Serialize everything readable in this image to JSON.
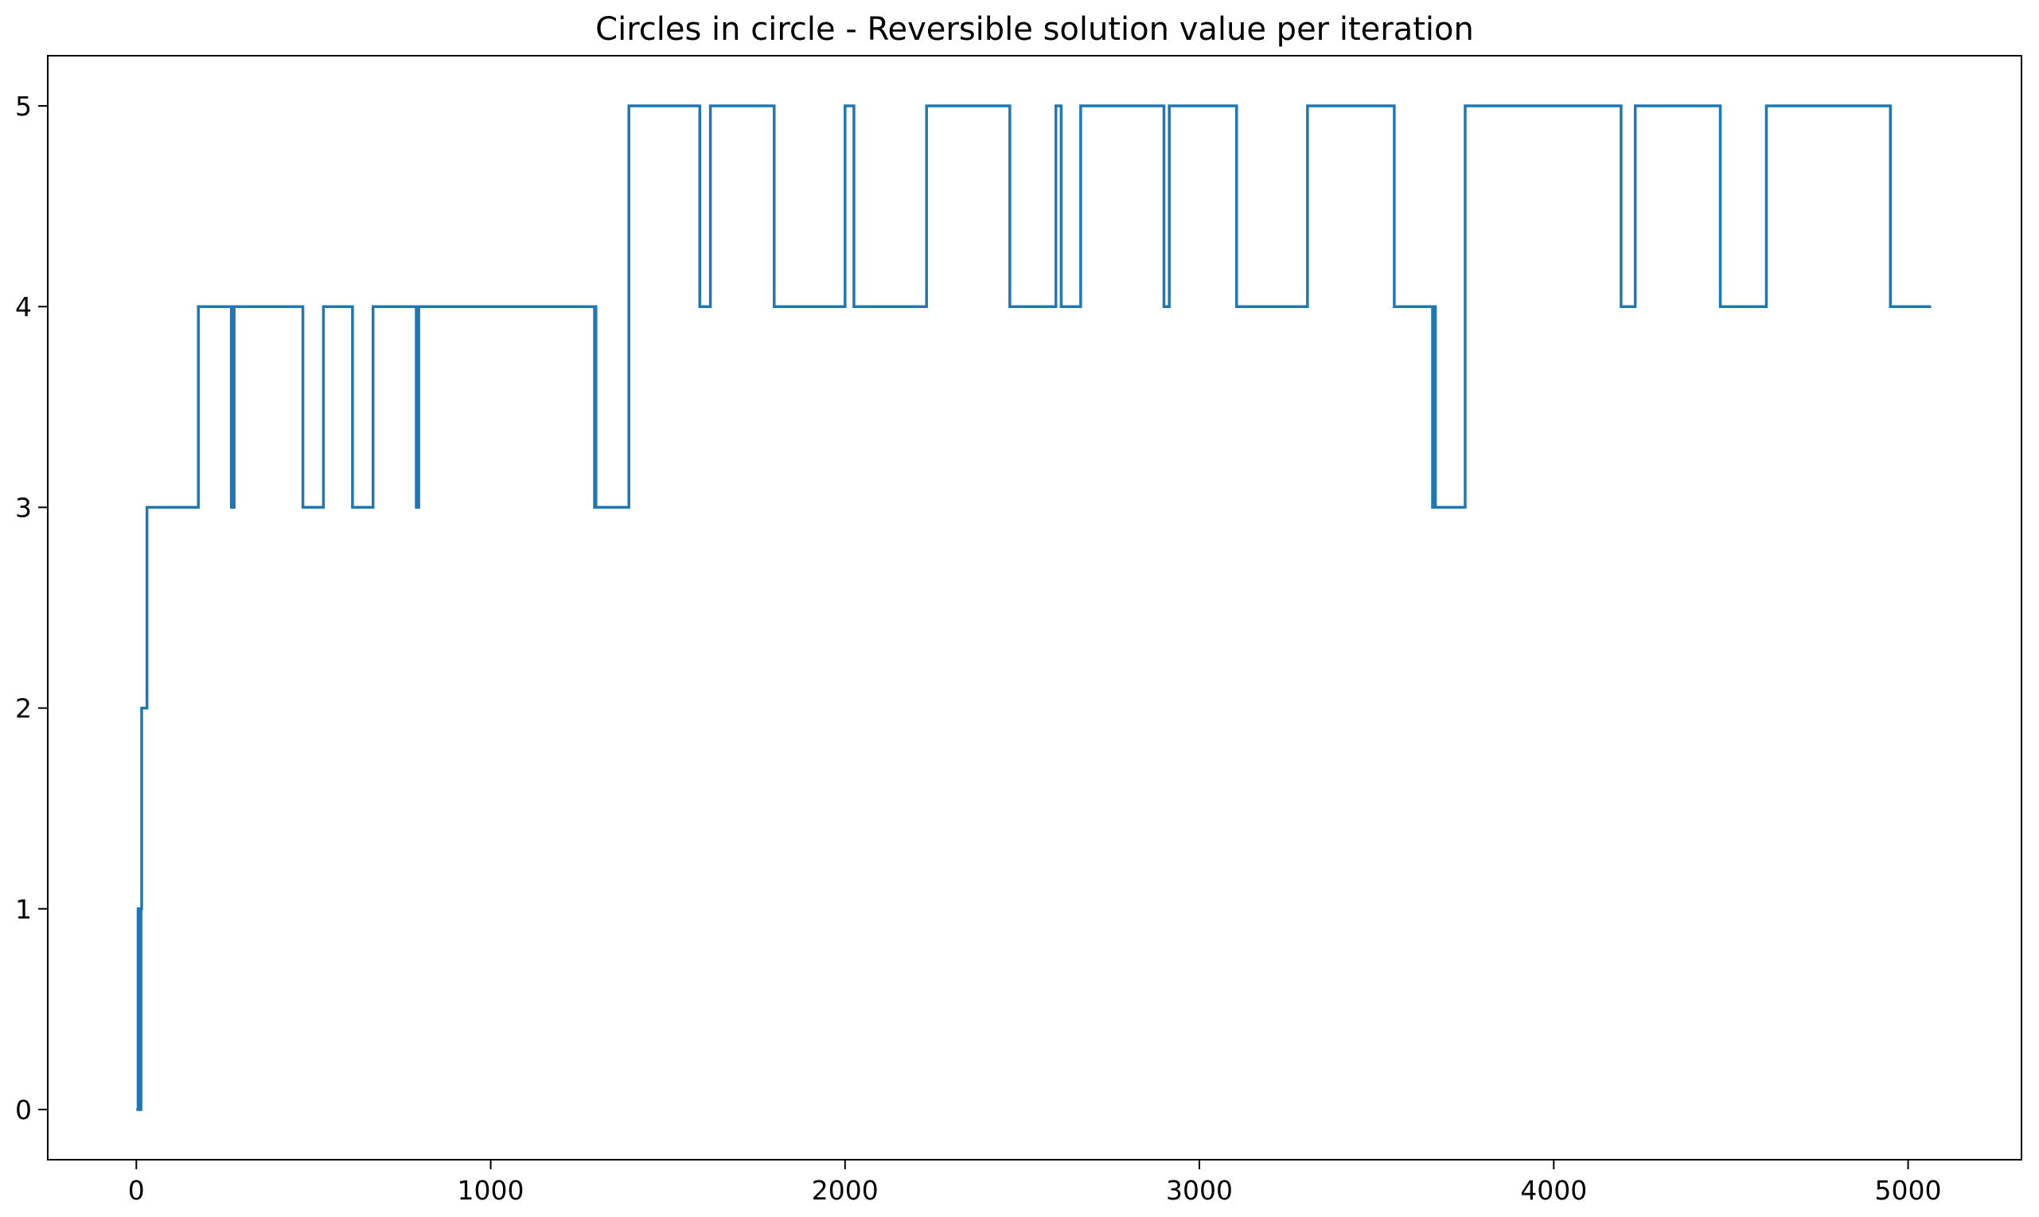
{
  "chart_data": {
    "type": "line",
    "title": "Circles in circle - Reversible solution value per iteration",
    "xlabel": "",
    "ylabel": "",
    "xlim": [
      -250,
      5320
    ],
    "ylim": [
      -0.25,
      5.25
    ],
    "xticks": [
      0,
      1000,
      2000,
      3000,
      4000,
      5000
    ],
    "xtick_labels": [
      "0",
      "1000",
      "2000",
      "3000",
      "4000",
      "5000"
    ],
    "yticks": [
      0,
      1,
      2,
      3,
      4,
      5
    ],
    "ytick_labels": [
      "0",
      "1",
      "2",
      "3",
      "4",
      "5"
    ],
    "grid": false,
    "legend": "none",
    "colors": {
      "series": "#1f77b4"
    },
    "series": [
      {
        "step": "post",
        "x": [
          0,
          5,
          7,
          9,
          11,
          13,
          15,
          30,
          175,
          268,
          270,
          274,
          276,
          470,
          528,
          610,
          668,
          790,
          797,
          805,
          1293,
          1295,
          1297,
          1390,
          1590,
          1620,
          1800,
          2000,
          2010,
          2025,
          2230,
          2465,
          2595,
          2610,
          2665,
          2900,
          2915,
          3105,
          3305,
          3550,
          3658,
          3662,
          3666,
          3750,
          4190,
          4230,
          4470,
          4600,
          4950,
          5065
        ],
        "y": [
          0,
          1,
          0,
          1,
          0,
          1,
          2,
          3,
          4,
          3,
          4,
          3,
          4,
          3,
          4,
          3,
          4,
          3,
          4,
          4,
          3,
          4,
          3,
          5,
          4,
          5,
          4,
          5,
          5,
          4,
          5,
          4,
          5,
          4,
          5,
          4,
          5,
          4,
          5,
          4,
          3,
          4,
          3,
          5,
          4,
          5,
          4,
          5,
          4,
          4
        ]
      }
    ]
  }
}
